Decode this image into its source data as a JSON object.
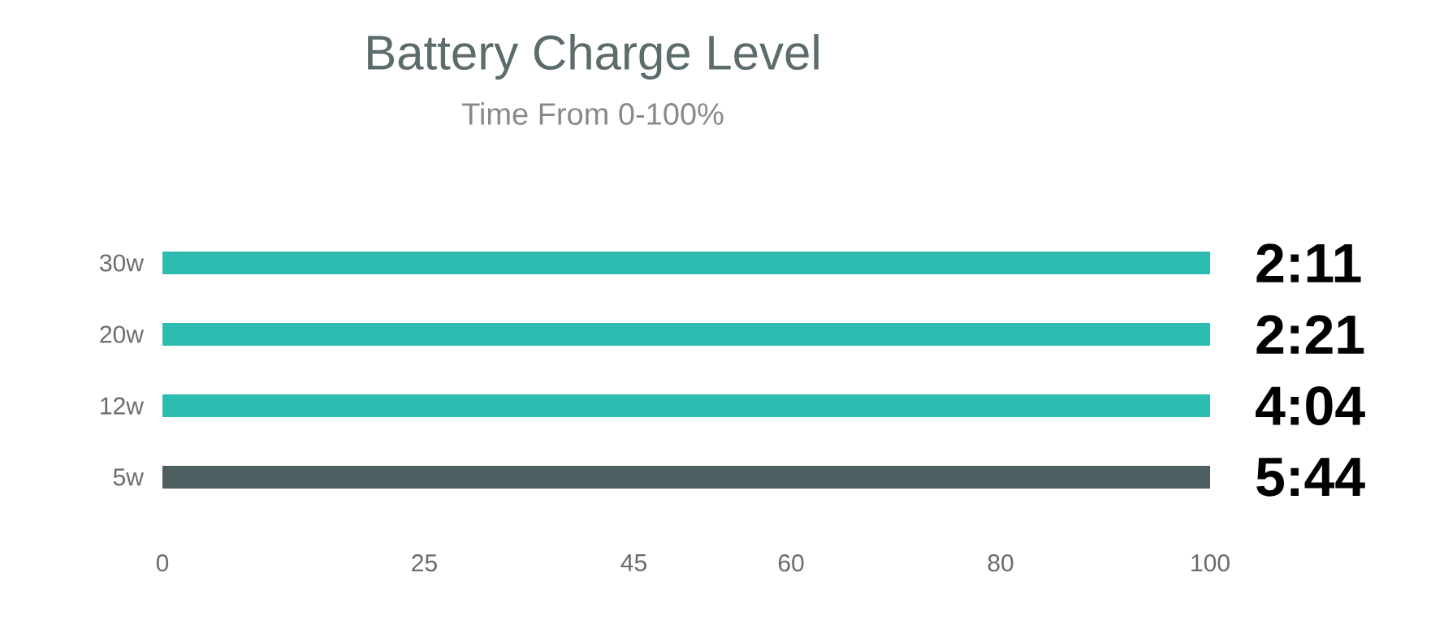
{
  "chart_data": {
    "type": "bar",
    "orientation": "horizontal",
    "title": "Battery Charge Level",
    "subtitle": "Time From 0-100%",
    "categories": [
      "30w",
      "20w",
      "12w",
      "5w"
    ],
    "values": [
      100,
      100,
      100,
      100
    ],
    "colors": [
      "#2ebcb0",
      "#2ebcb0",
      "#2ebcb0",
      "#4d5f61"
    ],
    "annotations": [
      "2:11",
      "2:21",
      "4:04",
      "5:44"
    ],
    "xlim": [
      0,
      100
    ],
    "xticks": [
      0,
      25,
      45,
      60,
      80,
      100
    ],
    "grid": false
  }
}
